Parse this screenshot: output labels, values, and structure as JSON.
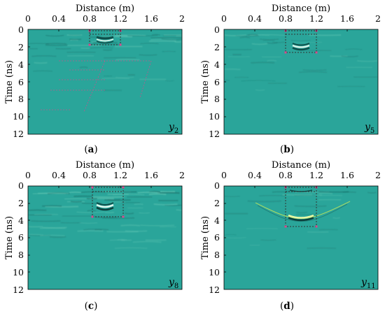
{
  "figure": {
    "panels": [
      {
        "id": "a",
        "caption_open": "(",
        "caption_letter": "a",
        "caption_close": ")",
        "series_main": "y",
        "series_sub": "2"
      },
      {
        "id": "b",
        "caption_open": "(",
        "caption_letter": "b",
        "caption_close": ")",
        "series_main": "y",
        "series_sub": "5"
      },
      {
        "id": "c",
        "caption_open": "(",
        "caption_letter": "c",
        "caption_close": ")",
        "series_main": "y",
        "series_sub": "8"
      },
      {
        "id": "d",
        "caption_open": "(",
        "caption_letter": "d",
        "caption_close": ")",
        "series_main": "y",
        "series_sub": "11"
      }
    ]
  },
  "chart_data": [
    {
      "type": "heatmap",
      "title": "",
      "xlabel": "Distance (m)",
      "ylabel": "Time (ns)",
      "xlim": [
        0,
        2
      ],
      "ylim": [
        0,
        12
      ],
      "y_inverted": true,
      "x_axis_position": "top",
      "xticks": [
        "0",
        "0.4",
        "0.8",
        "1.2",
        "1.6",
        "2"
      ],
      "yticks": [
        "0",
        "2",
        "4",
        "6",
        "8",
        "10",
        "12"
      ],
      "series_label": "y2",
      "background_color": "#2aa59a",
      "box": {
        "x": [
          0.8,
          1.2
        ],
        "t": [
          0.2,
          2.0
        ]
      },
      "reflection": {
        "x_center": 1.0,
        "t": 1.5,
        "strength": 0.5
      },
      "clutter": 0.5
    },
    {
      "type": "heatmap",
      "title": "",
      "xlabel": "Distance (m)",
      "ylabel": "Time (ns)",
      "xlim": [
        0,
        2
      ],
      "ylim": [
        0,
        12
      ],
      "y_inverted": true,
      "x_axis_position": "top",
      "xticks": [
        "0",
        "0.4",
        "0.8",
        "1.2",
        "1.6",
        "2"
      ],
      "yticks": [
        "0",
        "2",
        "4",
        "6",
        "8",
        "10",
        "12"
      ],
      "series_label": "y5",
      "background_color": "#2aa59a",
      "box": {
        "x": [
          0.8,
          1.2
        ],
        "t": [
          0.2,
          2.8
        ]
      },
      "reflection": {
        "x_center": 1.0,
        "t": 2.0,
        "strength": 0.8
      },
      "clutter": 0.3
    },
    {
      "type": "heatmap",
      "title": "",
      "xlabel": "Distance (m)",
      "ylabel": "Time (ns)",
      "xlim": [
        0,
        2
      ],
      "ylim": [
        0,
        12
      ],
      "y_inverted": true,
      "x_axis_position": "top",
      "xticks": [
        "0",
        "0.4",
        "0.8",
        "1.2",
        "1.6",
        "2"
      ],
      "yticks": [
        "0",
        "2",
        "4",
        "6",
        "8",
        "10",
        "12"
      ],
      "series_label": "y8",
      "background_color": "#2aa59a",
      "box": {
        "x": [
          0.8,
          1.2
        ],
        "t": [
          0.2,
          3.6
        ]
      },
      "reflection": {
        "x_center": 1.0,
        "t": 2.6,
        "strength": 0.9
      },
      "clutter": 0.8
    },
    {
      "type": "heatmap",
      "title": "",
      "xlabel": "Distance (m)",
      "ylabel": "Time (ns)",
      "xlim": [
        0,
        2
      ],
      "ylim": [
        0,
        12
      ],
      "y_inverted": true,
      "x_axis_position": "top",
      "xticks": [
        "0",
        "0.4",
        "0.8",
        "1.2",
        "1.6",
        "2"
      ],
      "yticks": [
        "0",
        "2",
        "4",
        "6",
        "8",
        "10",
        "12"
      ],
      "series_label": "y11",
      "background_color": "#2aa59a",
      "box": {
        "x": [
          0.8,
          1.2
        ],
        "t": [
          0.2,
          4.6
        ]
      },
      "reflection": {
        "x_center": 1.0,
        "t": 3.8,
        "strength": 1.0
      },
      "clutter": 0.2
    }
  ]
}
